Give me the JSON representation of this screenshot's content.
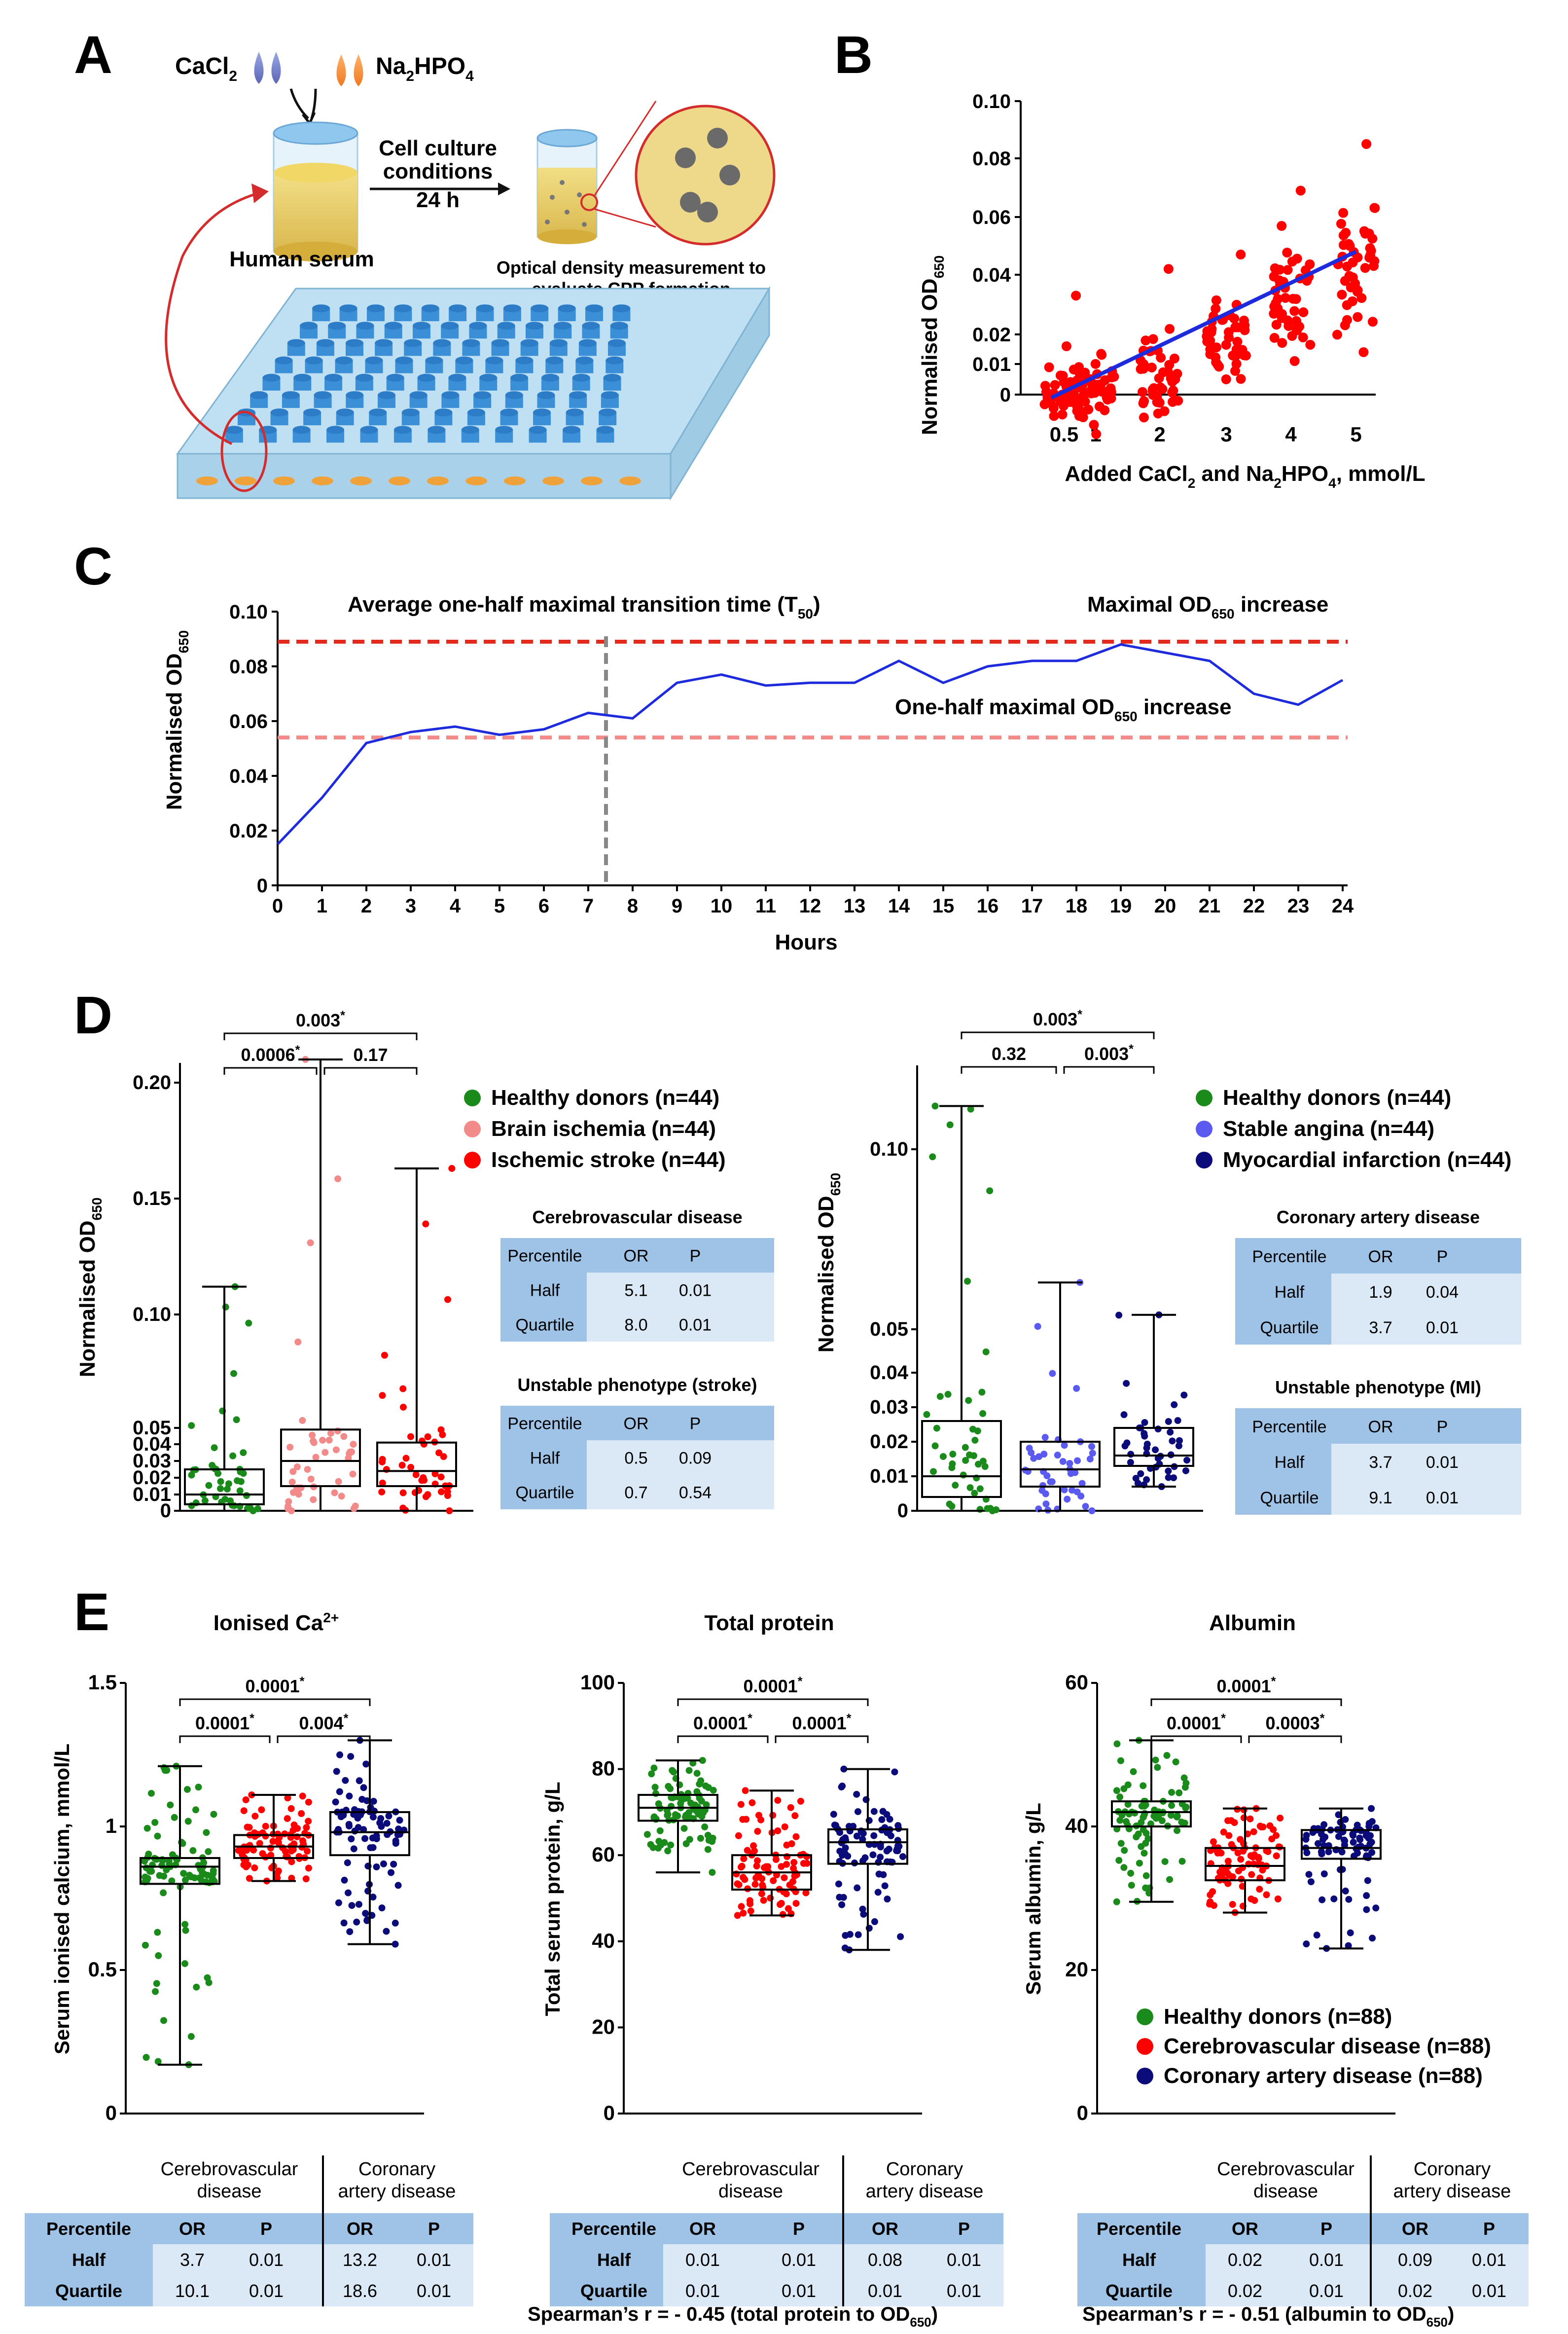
{
  "panels": {
    "A": {
      "letter": "A",
      "reagent1": "CaCl",
      "reagent1_sub": "2",
      "reagent2_a": "Na",
      "reagent2_sub1": "2",
      "reagent2_b": "HPO",
      "reagent2_sub2": "4",
      "culture_l1": "Cell culture",
      "culture_l2": "conditions",
      "culture_l3": "24 h",
      "serum_label": "Human serum",
      "measure_l1": "Optical density measurement to",
      "measure_l2": "evaluate CPP formation"
    },
    "B": {
      "letter": "B"
    },
    "C": {
      "letter": "C"
    },
    "D": {
      "letter": "D"
    },
    "E": {
      "letter": "E"
    }
  },
  "labels": {
    "od_main": "Normalised OD",
    "od_sub": "650",
    "b_x_a": "Added CaCl",
    "b_x_s1": "2",
    "b_x_b": " and Na",
    "b_x_s2": "2",
    "b_x_c": "HPO",
    "b_x_s3": "4",
    "b_x_d": ", mmol/L",
    "c_xlabel": "Hours",
    "c_t50_a": "Average one-half maximal transition time (T",
    "c_t50_s": "50",
    "c_t50_b": ")",
    "c_max_a": "Maximal OD",
    "c_max_s": "650",
    "c_max_b": " increase",
    "c_half_a": "One-half maximal OD",
    "c_half_s": "650",
    "c_half_b": " increase"
  },
  "chart_data": [
    {
      "id": "B",
      "type": "scatter",
      "xlabel": "Added CaCl2 and Na2HPO4, mmol/L",
      "ylabel": "Normalised OD650",
      "x_ticks": [
        "0.5",
        "1",
        "2",
        "3",
        "4",
        "5"
      ],
      "y_ticks": [
        "0",
        "0.01",
        "0.02",
        "0.04",
        "0.06",
        "0.08",
        "0.10"
      ],
      "ylim": [
        0,
        0.1
      ],
      "groups": [
        {
          "x": 0.5,
          "median": 0.001,
          "min": -0.007,
          "max": 0.016
        },
        {
          "x": 1,
          "median": 0.002,
          "min": -0.007,
          "max": 0.033
        },
        {
          "x": 2,
          "median": 0.006,
          "min": -0.002,
          "max": 0.042
        },
        {
          "x": 3,
          "median": 0.019,
          "min": 0.005,
          "max": 0.047
        },
        {
          "x": 4,
          "median": 0.035,
          "min": 0.011,
          "max": 0.069
        },
        {
          "x": 5,
          "median": 0.044,
          "min": 0.014,
          "max": 0.085
        }
      ],
      "fit_line": {
        "x": [
          0.3,
          5
        ],
        "y": [
          -0.001,
          0.048
        ]
      },
      "color": "#ff0000",
      "line_color": "#1d2bdd"
    },
    {
      "id": "C",
      "type": "line",
      "xlabel": "Hours",
      "ylabel": "Normalised OD650",
      "x": [
        0,
        1,
        2,
        3,
        4,
        5,
        6,
        7,
        8,
        9,
        10,
        11,
        12,
        13,
        14,
        15,
        16,
        17,
        18,
        19,
        20,
        21,
        22,
        23,
        24
      ],
      "y": [
        0.015,
        0.032,
        0.052,
        0.056,
        0.058,
        0.055,
        0.057,
        0.063,
        0.061,
        0.074,
        0.077,
        0.073,
        0.074,
        0.074,
        0.082,
        0.074,
        0.08,
        0.082,
        0.082,
        0.088,
        0.085,
        0.082,
        0.07,
        0.066,
        0.075
      ],
      "x_ticks": [
        "0",
        "1",
        "2",
        "3",
        "4",
        "5",
        "6",
        "7",
        "8",
        "9",
        "10",
        "11",
        "12",
        "13",
        "14",
        "15",
        "16",
        "17",
        "18",
        "19",
        "20",
        "21",
        "22",
        "23",
        "24"
      ],
      "y_ticks": [
        "0",
        "0.02",
        "0.04",
        "0.06",
        "0.08",
        "0.10"
      ],
      "ylim": [
        0,
        0.1
      ],
      "max_line": 0.089,
      "half_line": 0.054,
      "t50": 7.4,
      "line_color": "#1d2bdd",
      "max_color": "#e42a1d",
      "half_color": "#f28a8a"
    },
    {
      "id": "D-left",
      "type": "box",
      "ylabel": "Normalised OD650",
      "y_ticks": [
        "0",
        "0.01",
        "0.02",
        "0.03",
        "0.04",
        "0.05",
        "0.10",
        "0.15",
        "0.20"
      ],
      "series": [
        {
          "name": "Healthy donors (n=44)",
          "color": "#1a8a1a",
          "min": 0,
          "q1": 0.004,
          "median": 0.01,
          "q3": 0.025,
          "max": 0.112
        },
        {
          "name": "Brain ischemia (n=44)",
          "color": "#f28a8a",
          "min": 0,
          "q1": 0.015,
          "median": 0.03,
          "q3": 0.049,
          "max": 0.21
        },
        {
          "name": "Ischemic stroke (n=44)",
          "color": "#ff0000",
          "min": 0,
          "q1": 0.015,
          "median": 0.024,
          "q3": 0.041,
          "max": 0.163
        }
      ],
      "comparisons": [
        "0.003*",
        "0.0006*",
        "0.17"
      ]
    },
    {
      "id": "D-right",
      "type": "box",
      "ylabel": "Normalised OD650",
      "y_ticks": [
        "0",
        "0.01",
        "0.02",
        "0.03",
        "0.04",
        "0.05",
        "0.10"
      ],
      "series": [
        {
          "name": "Healthy donors (n=44)",
          "color": "#1a8a1a",
          "min": 0,
          "q1": 0.004,
          "median": 0.01,
          "q3": 0.026,
          "max": 0.112
        },
        {
          "name": "Stable angina (n=44)",
          "color": "#5a5af0",
          "min": 0,
          "q1": 0.007,
          "median": 0.012,
          "q3": 0.02,
          "max": 0.063
        },
        {
          "name": "Myocardial infarction (n=44)",
          "color": "#0b0b7a",
          "min": 0.007,
          "q1": 0.013,
          "median": 0.016,
          "q3": 0.024,
          "max": 0.054
        }
      ],
      "comparisons": [
        "0.003*",
        "0.32",
        "0.003*"
      ]
    },
    {
      "id": "E-calcium",
      "type": "box",
      "title": "Ionised Ca2+",
      "ylabel": "Serum ionised calcium, mmol/L",
      "y_ticks": [
        "0",
        "0.5",
        "1",
        "1.5"
      ],
      "ylim": [
        0,
        1.5
      ],
      "series": [
        {
          "name": "Healthy donors",
          "color": "#1a8a1a",
          "min": 0.17,
          "q1": 0.8,
          "median": 0.86,
          "q3": 0.89,
          "max": 1.21
        },
        {
          "name": "Cerebrovascular disease",
          "color": "#ff0000",
          "min": 0.81,
          "q1": 0.89,
          "median": 0.93,
          "q3": 0.97,
          "max": 1.11
        },
        {
          "name": "Coronary artery disease",
          "color": "#0b0b7a",
          "min": 0.59,
          "q1": 0.9,
          "median": 0.98,
          "q3": 1.05,
          "max": 1.3
        }
      ],
      "comparisons": [
        "0.0001*",
        "0.0001*",
        "0.004*"
      ]
    },
    {
      "id": "E-protein",
      "type": "box",
      "title": "Total protein",
      "ylabel": "Total serum protein, g/L",
      "y_ticks": [
        "0",
        "20",
        "40",
        "60",
        "80",
        "100"
      ],
      "ylim": [
        0,
        100
      ],
      "series": [
        {
          "name": "Healthy donors",
          "color": "#1a8a1a",
          "min": 56,
          "q1": 68,
          "median": 71,
          "q3": 74,
          "max": 82
        },
        {
          "name": "Cerebrovascular disease",
          "color": "#ff0000",
          "min": 46,
          "q1": 52,
          "median": 56,
          "q3": 60,
          "max": 75
        },
        {
          "name": "Coronary artery disease",
          "color": "#0b0b7a",
          "min": 38,
          "q1": 58,
          "median": 63,
          "q3": 66,
          "max": 80
        }
      ],
      "comparisons": [
        "0.0001*",
        "0.0001*",
        "0.0001*"
      ]
    },
    {
      "id": "E-albumin",
      "type": "box",
      "title": "Albumin",
      "ylabel": "Serum albumin, g/L",
      "y_ticks": [
        "0",
        "20",
        "40",
        "60"
      ],
      "ylim": [
        0,
        60
      ],
      "series": [
        {
          "name": "Healthy donors",
          "color": "#1a8a1a",
          "min": 29.5,
          "q1": 40,
          "median": 42,
          "q3": 43.5,
          "max": 52
        },
        {
          "name": "Cerebrovascular disease",
          "color": "#ff0000",
          "min": 28,
          "q1": 32.5,
          "median": 34.5,
          "q3": 37,
          "max": 42.5
        },
        {
          "name": "Coronary artery disease",
          "color": "#0b0b7a",
          "min": 23,
          "q1": 35.5,
          "median": 37,
          "q3": 39.5,
          "max": 42.5
        }
      ],
      "comparisons": [
        "0.0001*",
        "0.0001*",
        "0.0003*"
      ]
    }
  ],
  "legends": {
    "d_left": [
      "Healthy donors (n=44)",
      "Brain ischemia (n=44)",
      "Ischemic stroke (n=44)"
    ],
    "d_right": [
      "Healthy donors (n=44)",
      "Stable angina (n=44)",
      "Myocardial infarction (n=44)"
    ],
    "e": [
      "Healthy donors (n=88)",
      "Cerebrovascular disease (n=88)",
      "Coronary artery disease (n=88)"
    ]
  },
  "tables": {
    "d_cerebro": {
      "title": "Cerebrovascular disease",
      "header": [
        "Percentile",
        "OR",
        "P"
      ],
      "rows": [
        [
          "Half",
          "5.1",
          "0.01"
        ],
        [
          "Quartile",
          "8.0",
          "0.01"
        ]
      ]
    },
    "d_unstable_stroke": {
      "title": "Unstable phenotype (stroke)",
      "header": [
        "Percentile",
        "OR",
        "P"
      ],
      "rows": [
        [
          "Half",
          "0.5",
          "0.09"
        ],
        [
          "Quartile",
          "0.7",
          "0.54"
        ]
      ]
    },
    "d_coronary": {
      "title": "Coronary artery disease",
      "header": [
        "Percentile",
        "OR",
        "P"
      ],
      "rows": [
        [
          "Half",
          "1.9",
          "0.04"
        ],
        [
          "Quartile",
          "3.7",
          "0.01"
        ]
      ]
    },
    "d_unstable_mi": {
      "title": "Unstable phenotype (MI)",
      "header": [
        "Percentile",
        "OR",
        "P"
      ],
      "rows": [
        [
          "Half",
          "3.7",
          "0.01"
        ],
        [
          "Quartile",
          "9.1",
          "0.01"
        ]
      ]
    },
    "e_group_labels": {
      "cerebro_l1": "Cerebrovascular",
      "cerebro_l2": "disease",
      "coronary_l1": "Coronary",
      "coronary_l2": "artery disease"
    },
    "e_header": [
      "Percentile",
      "OR",
      "P",
      "OR",
      "P"
    ],
    "e_calcium": [
      [
        "Half",
        "3.7",
        "0.01",
        "13.2",
        "0.01"
      ],
      [
        "Quartile",
        "10.1",
        "0.01",
        "18.6",
        "0.01"
      ]
    ],
    "e_protein": [
      [
        "Half",
        "0.01",
        "0.01",
        "0.08",
        "0.01"
      ],
      [
        "Quartile",
        "0.01",
        "0.01",
        "0.01",
        "0.01"
      ]
    ],
    "e_albumin": [
      [
        "Half",
        "0.02",
        "0.01",
        "0.09",
        "0.01"
      ],
      [
        "Quartile",
        "0.02",
        "0.01",
        "0.02",
        "0.01"
      ]
    ]
  },
  "notes": {
    "protein_a": "Spearman’s r = - 0.45 (total protein to OD",
    "protein_s": "650",
    "protein_b": ")",
    "albumin_a": "Spearman’s r = - 0.51 (albumin to OD",
    "albumin_s": "650",
    "albumin_b": ")"
  }
}
